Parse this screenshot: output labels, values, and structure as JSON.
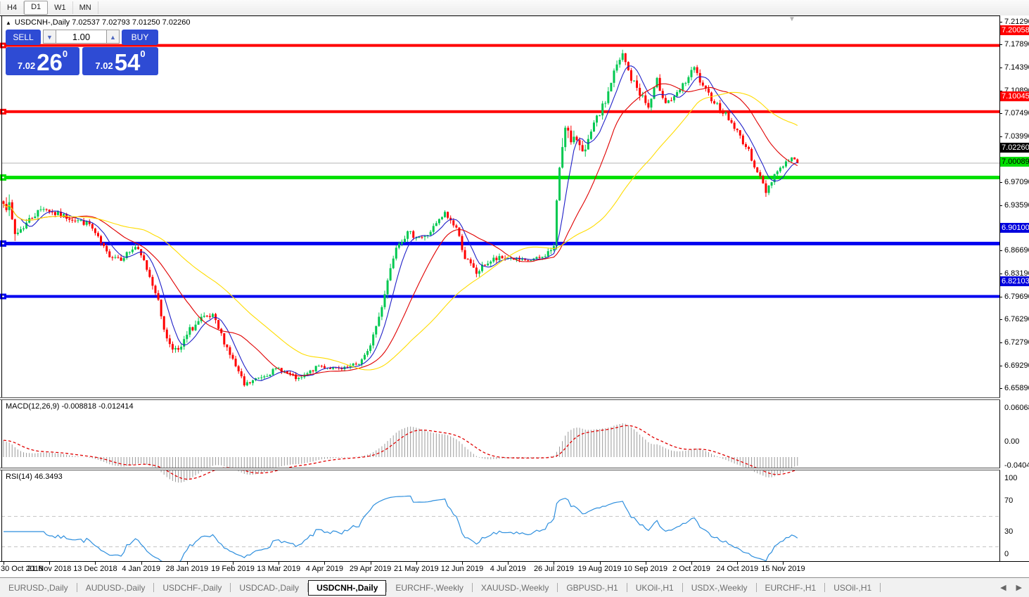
{
  "toolbar": {
    "timeframes": [
      {
        "label": "H4",
        "active": false
      },
      {
        "label": "D1",
        "active": true
      },
      {
        "label": "W1",
        "active": false
      },
      {
        "label": "MN",
        "active": false
      }
    ]
  },
  "icons": {
    "collapse_arrow": "▲",
    "shift_marker": "▼",
    "spin_down": "▼",
    "spin_up": "▲",
    "tab_scroll_left": "◀",
    "tab_scroll_right": "▶"
  },
  "chart": {
    "symbol_title": "USDCNH-,Daily",
    "ohlc_text": "7.02537 7.02793 7.01250 7.02260",
    "trade_panel": {
      "sell_label": "SELL",
      "buy_label": "BUY",
      "volume": "1.00",
      "sell_price_small": "7.02",
      "sell_price_big": "26",
      "sell_price_sup": "0",
      "buy_price_small": "7.02",
      "buy_price_big": "54",
      "buy_price_sup": "0"
    }
  },
  "price_axis": {
    "ticks": [
      "7.21290",
      "7.17890",
      "7.14390",
      "7.10890",
      "7.07490",
      "7.03990",
      "6.97090",
      "6.93590",
      "6.86690",
      "6.83190",
      "6.79690",
      "6.76290",
      "6.72790",
      "6.69290",
      "6.65890"
    ],
    "badges": [
      {
        "label": "7.20058",
        "bg": "#ff0000",
        "fg": "#ffffff"
      },
      {
        "label": "7.10045",
        "bg": "#ff0000",
        "fg": "#ffffff"
      },
      {
        "label": "7.02260",
        "bg": "#000000",
        "fg": "#ffffff"
      },
      {
        "label": "7.00089",
        "bg": "#00dd00",
        "fg": "#000000"
      },
      {
        "label": "6.90100",
        "bg": "#0000dd",
        "fg": "#ffffff"
      },
      {
        "label": "6.82103",
        "bg": "#0000dd",
        "fg": "#ffffff"
      }
    ]
  },
  "levels": [
    {
      "price": 7.20058,
      "color": "#ff0000",
      "thickness": 4
    },
    {
      "price": 7.10045,
      "color": "#ff0000",
      "thickness": 4
    },
    {
      "price": 7.00089,
      "color": "#00e000",
      "thickness": 5
    },
    {
      "price": 6.901,
      "color": "#0000f0",
      "thickness": 5
    },
    {
      "price": 6.82103,
      "color": "#0000f0",
      "thickness": 4
    }
  ],
  "current_price": {
    "price": 7.0226,
    "color": "#b4b4b4"
  },
  "macd": {
    "title": "MACD(12,26,9) -0.008818 -0.012414",
    "axis_max": "0.060687",
    "axis_zero": "0.00",
    "axis_min": "-0.040432",
    "histogram_color": "#9a9a9a",
    "signal_color": "#e00000"
  },
  "rsi": {
    "title": "RSI(14) 46.3493",
    "axis": [
      "100",
      "70",
      "30",
      "0"
    ],
    "levels": [
      70,
      30
    ],
    "line_color": "#2e8fde",
    "level_color": "#c2c2c2"
  },
  "date_axis": {
    "labels": [
      "30 Oct 2018",
      "21 Nov 2018",
      "13 Dec 2018",
      "4 Jan 2019",
      "28 Jan 2019",
      "19 Feb 2019",
      "13 Mar 2019",
      "4 Apr 2019",
      "29 Apr 2019",
      "21 May 2019",
      "12 Jun 2019",
      "4 Jul 2019",
      "26 Jul 2019",
      "19 Aug 2019",
      "10 Sep 2019",
      "2 Oct 2019",
      "24 Oct 2019",
      "15 Nov 2019"
    ]
  },
  "tabs": {
    "items": [
      {
        "label": "EURUSD-,Daily",
        "active": false
      },
      {
        "label": "AUDUSD-,Daily",
        "active": false
      },
      {
        "label": "USDCHF-,Daily",
        "active": false
      },
      {
        "label": "USDCAD-,Daily",
        "active": false
      },
      {
        "label": "USDCNH-,Daily",
        "active": true
      },
      {
        "label": "EURCHF-,Weekly",
        "active": false
      },
      {
        "label": "XAUUSD-,Weekly",
        "active": false
      },
      {
        "label": "GBPUSD-,H1",
        "active": false
      },
      {
        "label": "UKOil-,H1",
        "active": false
      },
      {
        "label": "USDX-,Weekly",
        "active": false
      },
      {
        "label": "EURCHF-,H1",
        "active": false
      },
      {
        "label": "USOil-,H1",
        "active": false
      }
    ]
  },
  "chart_data": {
    "type": "candlestick",
    "title": "USDCNH-,Daily",
    "ohlc_current": {
      "open": 7.02537,
      "high": 7.02793,
      "low": 7.0125,
      "close": 7.0226
    },
    "ylim": [
      6.6451,
      7.2225
    ],
    "candle_count": 278,
    "noise_seed": 7,
    "bull_color": "#00c850",
    "bear_color": "#ff0000",
    "close_anchors": [
      [
        0,
        6.968,
        0.012
      ],
      [
        2,
        6.952,
        0.02
      ],
      [
        4,
        6.915,
        0.015
      ],
      [
        7,
        6.927,
        0.01
      ],
      [
        10,
        6.942,
        0.009
      ],
      [
        14,
        6.956,
        0.008
      ],
      [
        18,
        6.946,
        0.008
      ],
      [
        23,
        6.94,
        0.007
      ],
      [
        30,
        6.93,
        0.007
      ],
      [
        36,
        6.886,
        0.008
      ],
      [
        41,
        6.879,
        0.007
      ],
      [
        46,
        6.896,
        0.007
      ],
      [
        49,
        6.874,
        0.008
      ],
      [
        53,
        6.83,
        0.009
      ],
      [
        57,
        6.756,
        0.01
      ],
      [
        61,
        6.736,
        0.009
      ],
      [
        65,
        6.77,
        0.009
      ],
      [
        69,
        6.786,
        0.009
      ],
      [
        73,
        6.79,
        0.008
      ],
      [
        78,
        6.744,
        0.008
      ],
      [
        84,
        6.686,
        0.008
      ],
      [
        90,
        6.7,
        0.006
      ],
      [
        96,
        6.712,
        0.006
      ],
      [
        103,
        6.695,
        0.005
      ],
      [
        110,
        6.716,
        0.005
      ],
      [
        118,
        6.71,
        0.005
      ],
      [
        124,
        6.72,
        0.005
      ],
      [
        127,
        6.736,
        0.006
      ],
      [
        131,
        6.79,
        0.01
      ],
      [
        134,
        6.846,
        0.01
      ],
      [
        137,
        6.9,
        0.009
      ],
      [
        141,
        6.916,
        0.008
      ],
      [
        147,
        6.91,
        0.008
      ],
      [
        151,
        6.93,
        0.007
      ],
      [
        154,
        6.946,
        0.008
      ],
      [
        158,
        6.925,
        0.007
      ],
      [
        161,
        6.88,
        0.008
      ],
      [
        165,
        6.856,
        0.008
      ],
      [
        168,
        6.87,
        0.007
      ],
      [
        171,
        6.876,
        0.009
      ],
      [
        176,
        6.88,
        0.006
      ],
      [
        182,
        6.874,
        0.005
      ],
      [
        188,
        6.88,
        0.005
      ],
      [
        192,
        6.896,
        0.008
      ],
      [
        194,
        7.02,
        0.03
      ],
      [
        196,
        7.086,
        0.02
      ],
      [
        198,
        7.05,
        0.015
      ],
      [
        200,
        7.06,
        0.012
      ],
      [
        203,
        7.04,
        0.012
      ],
      [
        206,
        7.08,
        0.01
      ],
      [
        210,
        7.116,
        0.01
      ],
      [
        213,
        7.16,
        0.01
      ],
      [
        216,
        7.186,
        0.01
      ],
      [
        219,
        7.15,
        0.01
      ],
      [
        222,
        7.13,
        0.012
      ],
      [
        225,
        7.106,
        0.01
      ],
      [
        228,
        7.146,
        0.01
      ],
      [
        231,
        7.116,
        0.01
      ],
      [
        234,
        7.12,
        0.008
      ],
      [
        238,
        7.146,
        0.008
      ],
      [
        241,
        7.166,
        0.008
      ],
      [
        244,
        7.136,
        0.008
      ],
      [
        248,
        7.116,
        0.008
      ],
      [
        252,
        7.096,
        0.007
      ],
      [
        256,
        7.07,
        0.007
      ],
      [
        260,
        7.04,
        0.007
      ],
      [
        263,
        7.01,
        0.008
      ],
      [
        266,
        6.98,
        0.009
      ],
      [
        269,
        7.006,
        0.007
      ],
      [
        272,
        7.02,
        0.006
      ],
      [
        275,
        7.03,
        0.005
      ],
      [
        277,
        7.0226,
        0.005
      ]
    ],
    "moving_averages": [
      {
        "period": 7,
        "color": "#2020c8"
      },
      {
        "period": 21,
        "color": "#e00000"
      },
      {
        "period": 50,
        "color": "#ffdc00"
      }
    ],
    "macd_params": [
      12,
      26,
      9
    ],
    "rsi_period": 14
  }
}
